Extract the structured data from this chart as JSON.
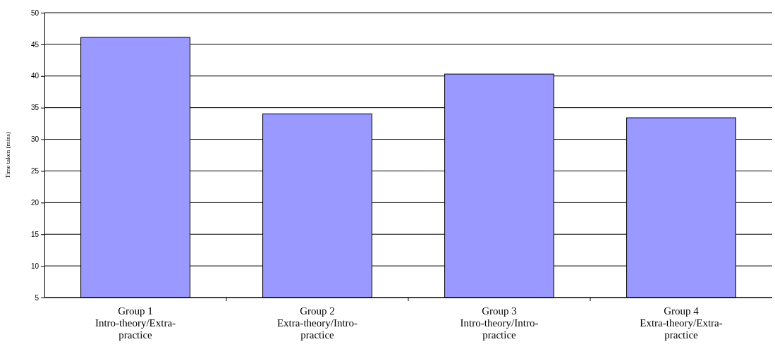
{
  "chart_data": {
    "type": "bar",
    "ylabel": "Time taken (mins)",
    "categories": [
      "Group 1\nIntro-theory/Extra-practice",
      "Group 2\nExtra-theory/Intro-practice",
      "Group 3\nIntro-theory/Intro-practice",
      "Group 4\nExtra-theory/Extra-practice"
    ],
    "values": [
      46.1,
      34.0,
      40.3,
      33.4
    ],
    "color": "#9999ff",
    "ylim": [
      5,
      50
    ],
    "yticks": [
      5,
      10,
      15,
      20,
      25,
      30,
      35,
      40,
      45,
      50
    ],
    "grid": "y"
  }
}
